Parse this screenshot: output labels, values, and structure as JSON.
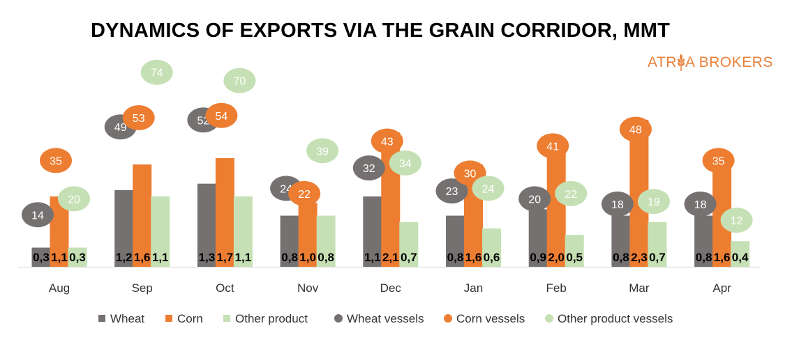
{
  "chart_data": {
    "type": "bar",
    "title": "DYNAMICS OF EXPORTS VIA THE GRAIN CORRIDOR, MMT",
    "categories": [
      "Aug",
      "Sep",
      "Oct",
      "Nov",
      "Dec",
      "Jan",
      "Feb",
      "Mar",
      "Apr"
    ],
    "series": [
      {
        "name": "Wheat",
        "kind": "bar",
        "values": [
          0.3,
          1.2,
          1.3,
          0.8,
          1.1,
          0.8,
          0.9,
          0.8,
          0.8
        ],
        "labels": [
          "0,3",
          "1,2",
          "1,3",
          "0,8",
          "1,1",
          "0,8",
          "0,9",
          "0,8",
          "0,8"
        ]
      },
      {
        "name": "Corn",
        "kind": "bar",
        "values": [
          1.1,
          1.6,
          1.7,
          1.0,
          2.1,
          1.6,
          2.0,
          2.3,
          1.6
        ],
        "labels": [
          "1,1",
          "1,6",
          "1,7",
          "1,0",
          "2,1",
          "1,6",
          "2,0",
          "2,3",
          "1,6"
        ]
      },
      {
        "name": "Other product",
        "kind": "bar",
        "values": [
          0.3,
          1.1,
          1.1,
          0.8,
          0.7,
          0.6,
          0.5,
          0.7,
          0.4
        ],
        "labels": [
          "0,3",
          "1,1",
          "1,1",
          "0,8",
          "0,7",
          "0,6",
          "0,5",
          "0,7",
          "0,4"
        ]
      },
      {
        "name": "Wheat vessels",
        "kind": "bubble",
        "values": [
          14,
          49,
          52,
          24,
          32,
          23,
          20,
          18,
          18
        ]
      },
      {
        "name": "Corn vessels",
        "kind": "bubble",
        "values": [
          35,
          53,
          54,
          22,
          43,
          30,
          41,
          48,
          35
        ]
      },
      {
        "name": "Other product vessels",
        "kind": "bubble",
        "values": [
          20,
          74,
          70,
          39,
          34,
          24,
          22,
          19,
          12
        ]
      }
    ],
    "colors": {
      "Wheat": "#767171",
      "Corn": "#ed7d31",
      "Other product": "#c5e0b4",
      "Wheat vessels": "#767171",
      "Corn vessels": "#ed7d31",
      "Other product vessels": "#c5e0b4"
    },
    "bar_ylim": [
      0,
      2.8
    ],
    "vessel_ylim": [
      0,
      80
    ],
    "legend_position": "bottom"
  },
  "logo": {
    "text_before": "ATR",
    "text_after": "A BROKERS"
  }
}
